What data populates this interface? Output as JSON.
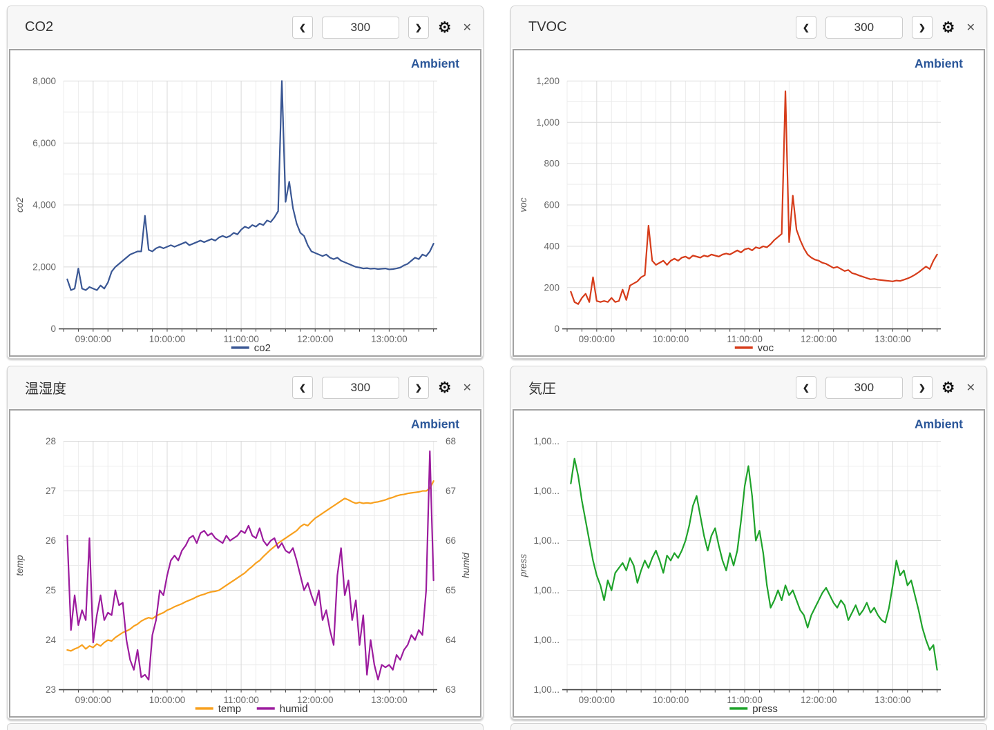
{
  "icons": {
    "prev": "❮",
    "next": "❯",
    "gear": "⚙",
    "close": "✕"
  },
  "colors": {
    "co2": "#3a5794",
    "voc": "#d63c1a",
    "temp": "#f8a01e",
    "humid": "#9c1c9e",
    "press": "#1fa32b",
    "ambient": "#2a5699"
  },
  "panels": [
    {
      "title": "CO2",
      "range_value": "300"
    },
    {
      "title": "TVOC",
      "range_value": "300"
    },
    {
      "title": "温湿度",
      "range_value": "300"
    },
    {
      "title": "気圧",
      "range_value": "300"
    }
  ],
  "chart_data": [
    {
      "type": "line",
      "panel_title": "CO2",
      "corner_label": "Ambient",
      "x": {
        "range": [
          8.6,
          13.65
        ],
        "major_ticks": [
          9,
          10,
          11,
          12,
          13
        ],
        "tick_labels": [
          "09:00:00",
          "10:00:00",
          "11:00:00",
          "12:00:00",
          "13:00:00"
        ],
        "minor_step": 0.2
      },
      "time": {
        "start": 8.65,
        "step": 0.05
      },
      "axes": {
        "left": {
          "title": "co2",
          "range": [
            0,
            8000
          ],
          "tick_values": [
            0,
            2000,
            4000,
            6000,
            8000
          ],
          "tick_labels": [
            "0",
            "2,000",
            "4,000",
            "6,000",
            "8,000"
          ],
          "minor_step": 1000
        }
      },
      "series": [
        {
          "name": "co2",
          "axis": "left",
          "color": "#3a5794",
          "values": [
            1600,
            1250,
            1300,
            1950,
            1300,
            1250,
            1350,
            1300,
            1250,
            1400,
            1300,
            1500,
            1850,
            2000,
            2100,
            2200,
            2300,
            2400,
            2450,
            2500,
            2500,
            3650,
            2550,
            2500,
            2600,
            2650,
            2600,
            2650,
            2700,
            2650,
            2700,
            2750,
            2800,
            2700,
            2750,
            2800,
            2850,
            2800,
            2850,
            2900,
            2850,
            2950,
            3000,
            2950,
            3000,
            3100,
            3050,
            3200,
            3300,
            3250,
            3350,
            3300,
            3400,
            3350,
            3500,
            3450,
            3600,
            3800,
            8000,
            4100,
            4750,
            3900,
            3400,
            3100,
            3000,
            2700,
            2500,
            2450,
            2400,
            2350,
            2400,
            2300,
            2250,
            2300,
            2200,
            2150,
            2100,
            2050,
            2000,
            1980,
            1950,
            1960,
            1940,
            1950,
            1930,
            1940,
            1950,
            1920,
            1930,
            1950,
            1980,
            2050,
            2100,
            2200,
            2300,
            2250,
            2400,
            2350,
            2500,
            2750
          ]
        }
      ]
    },
    {
      "type": "line",
      "panel_title": "TVOC",
      "corner_label": "Ambient",
      "x": {
        "range": [
          8.6,
          13.65
        ],
        "major_ticks": [
          9,
          10,
          11,
          12,
          13
        ],
        "tick_labels": [
          "09:00:00",
          "10:00:00",
          "11:00:00",
          "12:00:00",
          "13:00:00"
        ],
        "minor_step": 0.2
      },
      "time": {
        "start": 8.65,
        "step": 0.05
      },
      "axes": {
        "left": {
          "title": "voc",
          "range": [
            0,
            1200
          ],
          "tick_values": [
            0,
            200,
            400,
            600,
            800,
            1000,
            1200
          ],
          "tick_labels": [
            "0",
            "200",
            "400",
            "600",
            "800",
            "1,000",
            "1,200"
          ],
          "minor_step": 100
        }
      },
      "series": [
        {
          "name": "voc",
          "axis": "left",
          "color": "#d63c1a",
          "values": [
            180,
            130,
            120,
            150,
            170,
            130,
            250,
            135,
            130,
            135,
            130,
            150,
            130,
            135,
            190,
            140,
            210,
            220,
            230,
            250,
            260,
            500,
            330,
            310,
            320,
            330,
            310,
            330,
            340,
            330,
            345,
            350,
            340,
            355,
            350,
            345,
            355,
            350,
            360,
            355,
            350,
            360,
            365,
            360,
            370,
            380,
            370,
            385,
            390,
            380,
            395,
            390,
            400,
            395,
            410,
            430,
            445,
            460,
            1150,
            420,
            645,
            480,
            430,
            390,
            360,
            345,
            335,
            330,
            320,
            315,
            305,
            295,
            300,
            290,
            280,
            285,
            270,
            265,
            258,
            252,
            246,
            240,
            242,
            238,
            236,
            234,
            232,
            230,
            234,
            232,
            238,
            244,
            252,
            262,
            274,
            288,
            302,
            290,
            330,
            360
          ]
        }
      ]
    },
    {
      "type": "line",
      "panel_title": "温湿度",
      "corner_label": "Ambient",
      "x": {
        "range": [
          8.6,
          13.65
        ],
        "major_ticks": [
          9,
          10,
          11,
          12,
          13
        ],
        "tick_labels": [
          "09:00:00",
          "10:00:00",
          "11:00:00",
          "12:00:00",
          "13:00:00"
        ],
        "minor_step": 0.2
      },
      "time": {
        "start": 8.65,
        "step": 0.05
      },
      "axes": {
        "left": {
          "title": "temp",
          "range": [
            23,
            28
          ],
          "tick_values": [
            23,
            24,
            25,
            26,
            27,
            28
          ],
          "tick_labels": [
            "23",
            "24",
            "25",
            "26",
            "27",
            "28"
          ],
          "minor_step": 0.5
        },
        "right": {
          "title": "humid",
          "range": [
            63,
            68
          ],
          "tick_values": [
            63,
            64,
            65,
            66,
            67,
            68
          ],
          "tick_labels": [
            "63",
            "64",
            "65",
            "66",
            "67",
            "68"
          ],
          "minor_step": 0.5
        }
      },
      "series": [
        {
          "name": "temp",
          "axis": "left",
          "color": "#f8a01e",
          "values": [
            23.8,
            23.78,
            23.82,
            23.85,
            23.9,
            23.82,
            23.88,
            23.85,
            23.92,
            23.88,
            23.95,
            24.0,
            23.98,
            24.05,
            24.1,
            24.15,
            24.18,
            24.22,
            24.28,
            24.32,
            24.38,
            24.42,
            24.45,
            24.43,
            24.48,
            24.52,
            24.55,
            24.6,
            24.63,
            24.67,
            24.7,
            24.73,
            24.77,
            24.8,
            24.83,
            24.87,
            24.9,
            24.92,
            24.95,
            24.97,
            24.98,
            25.0,
            25.05,
            25.1,
            25.15,
            25.2,
            25.25,
            25.3,
            25.35,
            25.42,
            25.48,
            25.55,
            25.6,
            25.68,
            25.75,
            25.82,
            25.88,
            25.95,
            26.0,
            26.05,
            26.1,
            26.15,
            26.2,
            26.28,
            26.33,
            26.3,
            26.38,
            26.45,
            26.5,
            26.55,
            26.6,
            26.65,
            26.7,
            26.75,
            26.8,
            26.85,
            26.82,
            26.78,
            26.75,
            26.77,
            26.75,
            26.76,
            26.75,
            26.77,
            26.78,
            26.8,
            26.82,
            26.85,
            26.87,
            26.9,
            26.92,
            26.93,
            26.95,
            26.96,
            26.97,
            26.98,
            27.0,
            27.0,
            27.05,
            27.2
          ]
        },
        {
          "name": "humid",
          "axis": "right",
          "color": "#9c1c9e",
          "values": [
            66.1,
            64.2,
            64.9,
            64.3,
            64.6,
            64.4,
            66.05,
            63.95,
            64.5,
            64.9,
            64.4,
            64.55,
            64.5,
            65.0,
            64.7,
            64.75,
            64.0,
            63.6,
            63.4,
            63.8,
            63.25,
            63.3,
            63.2,
            64.1,
            64.4,
            65.0,
            64.9,
            65.3,
            65.6,
            65.7,
            65.6,
            65.8,
            65.9,
            66.05,
            66.1,
            65.95,
            66.15,
            66.2,
            66.1,
            66.15,
            66.05,
            66.0,
            65.95,
            66.1,
            66.0,
            66.05,
            66.1,
            66.2,
            66.15,
            66.3,
            66.1,
            66.05,
            66.25,
            66.0,
            65.9,
            66.0,
            66.05,
            65.85,
            65.95,
            65.8,
            65.75,
            65.85,
            65.6,
            65.3,
            65.0,
            65.15,
            64.9,
            64.7,
            65.0,
            64.4,
            64.6,
            64.2,
            63.9,
            65.3,
            65.85,
            64.9,
            65.2,
            64.4,
            64.8,
            63.9,
            64.5,
            63.3,
            64.0,
            63.5,
            63.2,
            63.5,
            63.45,
            63.5,
            63.4,
            63.7,
            63.6,
            63.8,
            63.9,
            64.1,
            64.0,
            64.2,
            64.1,
            65.0,
            67.8,
            65.2
          ]
        }
      ]
    },
    {
      "type": "line",
      "panel_title": "気圧",
      "corner_label": "Ambient",
      "x": {
        "range": [
          8.6,
          13.65
        ],
        "major_ticks": [
          9,
          10,
          11,
          12,
          13
        ],
        "tick_labels": [
          "09:00:00",
          "10:00:00",
          "11:00:00",
          "12:00:00",
          "13:00:00"
        ],
        "minor_step": 0.2
      },
      "time": {
        "start": 8.65,
        "step": 0.05
      },
      "axes": {
        "left": {
          "title": "press",
          "range": [
            0,
            100
          ],
          "tick_values": [
            0,
            20,
            40,
            60,
            80,
            100
          ],
          "tick_labels": [
            "1,00...",
            "1,00...",
            "1,00...",
            "1,00...",
            "1,00...",
            "1,00..."
          ],
          "minor_step": 10,
          "note": "axis labels truncated in source UI"
        }
      },
      "series": [
        {
          "name": "press",
          "axis": "left",
          "color": "#1fa32b",
          "values": [
            83,
            93,
            86,
            76,
            68,
            60,
            52,
            46,
            42,
            36,
            44,
            40,
            47,
            49,
            51,
            48,
            53,
            50,
            43,
            48,
            52,
            49,
            53,
            56,
            52,
            47,
            54,
            52,
            55,
            53,
            56,
            60,
            66,
            74,
            78,
            70,
            62,
            56,
            62,
            65,
            58,
            52,
            48,
            55,
            50,
            56,
            68,
            82,
            90,
            78,
            60,
            64,
            55,
            42,
            33,
            36,
            40,
            36,
            42,
            38,
            40,
            36,
            32,
            30,
            25,
            30,
            33,
            36,
            39,
            41,
            38,
            35,
            33,
            36,
            34,
            28,
            31,
            34,
            30,
            32,
            35,
            31,
            33,
            30,
            28,
            27,
            33,
            42,
            52,
            46,
            48,
            42,
            44,
            38,
            32,
            25,
            20,
            16,
            18,
            8
          ]
        }
      ]
    }
  ]
}
